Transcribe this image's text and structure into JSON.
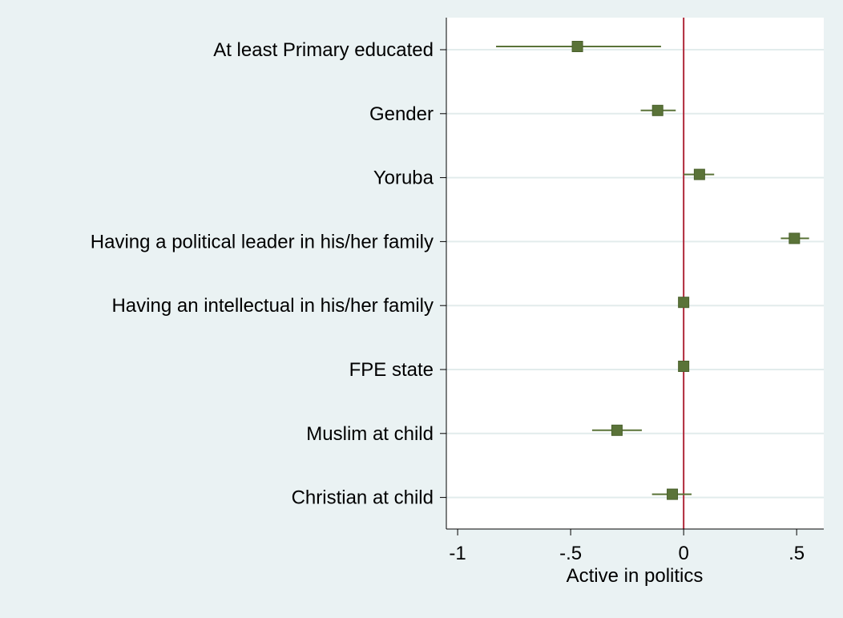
{
  "chart_data": {
    "type": "coefplot",
    "title": "",
    "xlabel": "Active in politics",
    "ylabel": "",
    "xlim": [
      -1.05,
      0.62
    ],
    "xticks": [
      -1,
      -0.5,
      0,
      0.5
    ],
    "xtick_labels": [
      "-1",
      "-.5",
      "0",
      ".5"
    ],
    "reference_line": 0,
    "grid": true,
    "categories": [
      "At least Primary educated",
      "Gender",
      "Yoruba",
      "Having a political leader in his/her family",
      "Having an intellectual in his/her family",
      "FPE state",
      "Muslim at child",
      "Christian at child"
    ],
    "estimates": [
      -0.47,
      -0.115,
      0.07,
      0.49,
      0.0,
      0.0,
      -0.295,
      -0.05
    ],
    "ci_low": [
      -0.83,
      -0.19,
      0.0,
      0.43,
      0.0,
      0.0,
      -0.405,
      -0.14
    ],
    "ci_high": [
      -0.1,
      -0.035,
      0.135,
      0.555,
      0.0,
      0.0,
      -0.185,
      0.035
    ]
  },
  "colors": {
    "background": "#eaf2f3",
    "plot_background": "#ffffff",
    "marker": "#5a7338",
    "ci_line": "#5a7338",
    "reference_line": "#b0283a",
    "grid": "#e2ecec",
    "axis": "#000000"
  }
}
